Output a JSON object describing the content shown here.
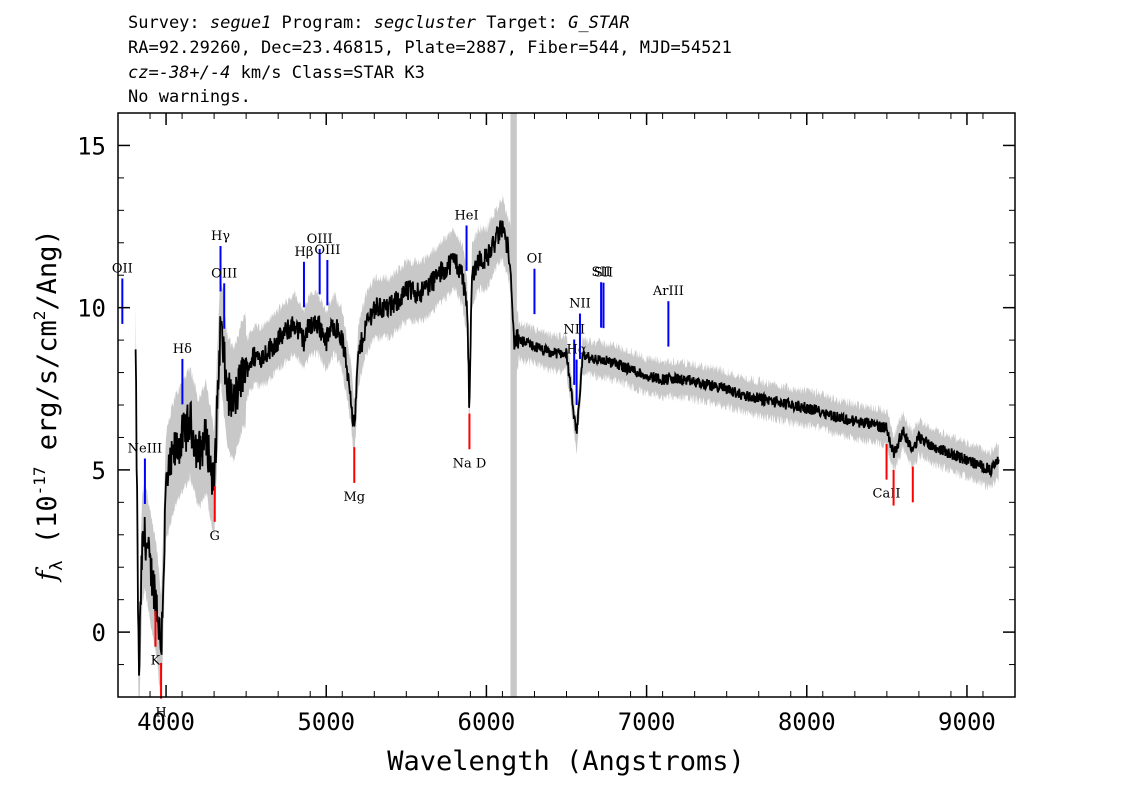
{
  "header": {
    "line1": [
      {
        "t": "Survey: ",
        "it": false
      },
      {
        "t": "segue1",
        "it": true
      },
      {
        "t": " Program: ",
        "it": false
      },
      {
        "t": "segcluster",
        "it": true
      },
      {
        "t": " Target: ",
        "it": false
      },
      {
        "t": "G_STAR",
        "it": true
      }
    ],
    "line2": "RA=92.29260, Dec=23.46815, Plate=2887, Fiber=544, MJD=54521",
    "line3": [
      {
        "t": "cz=-38+/-4",
        "it": true
      },
      {
        "t": " km/s Class=STAR K3",
        "it": false
      }
    ],
    "line4": "No warnings."
  },
  "chart_data": {
    "type": "line",
    "xlabel": "Wavelength (Angstroms)",
    "ylabel_parts": {
      "f": "f",
      "sub": "λ",
      "rest1": " (10",
      "exp": "-17",
      "rest2": " erg/s/cm",
      "exp2": "2",
      "rest3": "/Ang)"
    },
    "xlim": [
      3700,
      9300
    ],
    "ylim": [
      -2,
      16
    ],
    "xticks": [
      4000,
      5000,
      6000,
      7000,
      8000,
      9000
    ],
    "yticks": [
      0,
      5,
      10,
      15
    ],
    "colors": {
      "flux": "#000000",
      "error": "#c8c8c8",
      "emission": "#0000ff",
      "absorption": "#ff0000"
    },
    "series": [
      {
        "role": "flux",
        "x": [
          3810,
          3830,
          3850,
          3870,
          3900,
          3940,
          3970,
          4000,
          4050,
          4100,
          4150,
          4200,
          4250,
          4300,
          4340,
          4380,
          4420,
          4480,
          4550,
          4600,
          4700,
          4800,
          4860,
          4900,
          4950,
          5000,
          5050,
          5100,
          5150,
          5175,
          5200,
          5250,
          5300,
          5400,
          5500,
          5600,
          5700,
          5800,
          5850,
          5880,
          5893,
          5910,
          5950,
          6000,
          6050,
          6100,
          6150,
          6170,
          6200,
          6300,
          6400,
          6500,
          6563,
          6600,
          6700,
          6800,
          6900,
          7000,
          7100,
          7200,
          7300,
          7400,
          7500,
          7600,
          7700,
          7800,
          7900,
          8000,
          8100,
          8200,
          8300,
          8400,
          8498,
          8542,
          8600,
          8662,
          8700,
          8800,
          8900,
          9000,
          9100,
          9150,
          9200
        ],
        "values": [
          8.5,
          -1.5,
          2.5,
          3.0,
          2.0,
          1.0,
          -0.5,
          4.5,
          5.5,
          6.0,
          6.5,
          5.5,
          6.0,
          4.5,
          9.5,
          7.5,
          7.0,
          8.0,
          8.5,
          8.5,
          9.0,
          9.5,
          9.0,
          9.5,
          9.5,
          9.0,
          9.5,
          9.0,
          7.5,
          6.2,
          8.5,
          9.5,
          10.0,
          10.0,
          10.5,
          10.5,
          11.0,
          11.5,
          11.0,
          10.0,
          7.0,
          11.0,
          11.5,
          11.5,
          12.0,
          12.5,
          11.5,
          9.0,
          9.0,
          8.8,
          8.6,
          8.6,
          6.0,
          8.5,
          8.4,
          8.3,
          8.1,
          7.9,
          7.8,
          7.8,
          7.7,
          7.6,
          7.5,
          7.3,
          7.2,
          7.1,
          7.0,
          6.9,
          6.8,
          6.6,
          6.5,
          6.4,
          6.3,
          5.5,
          6.2,
          5.6,
          6.0,
          5.7,
          5.5,
          5.3,
          5.1,
          5.0,
          5.3
        ]
      }
    ],
    "emission_lines": [
      {
        "label": "OII",
        "x": 3727
      },
      {
        "label": "NeIII",
        "x": 3868
      },
      {
        "label": "Hδ",
        "x": 4102
      },
      {
        "label": "Hγ",
        "x": 4340
      },
      {
        "label": "OIII",
        "x": 4363
      },
      {
        "label": "Hβ",
        "x": 4861
      },
      {
        "label": "OIII",
        "x": 4959
      },
      {
        "label": "OIII",
        "x": 5007
      },
      {
        "label": "HeI",
        "x": 5876
      },
      {
        "label": "OI",
        "x": 6300
      },
      {
        "label": "NII",
        "x": 6548
      },
      {
        "label": "Hα",
        "x": 6563
      },
      {
        "label": "NII",
        "x": 6584
      },
      {
        "label": "SII",
        "x": 6716
      },
      {
        "label": "SII",
        "x": 6731
      },
      {
        "label": "ArIII",
        "x": 7136
      }
    ],
    "absorption_lines": [
      {
        "label": "K",
        "x": 3934
      },
      {
        "label": "H",
        "x": 3969
      },
      {
        "label": "G",
        "x": 4304
      },
      {
        "label": "Mg",
        "x": 5175
      },
      {
        "label": "Na D",
        "x": 5894
      },
      {
        "label": "CaII",
        "x": 8498
      },
      {
        "label": "CaII",
        "x": 8542
      },
      {
        "label": "CaII",
        "x": 8662
      }
    ]
  }
}
